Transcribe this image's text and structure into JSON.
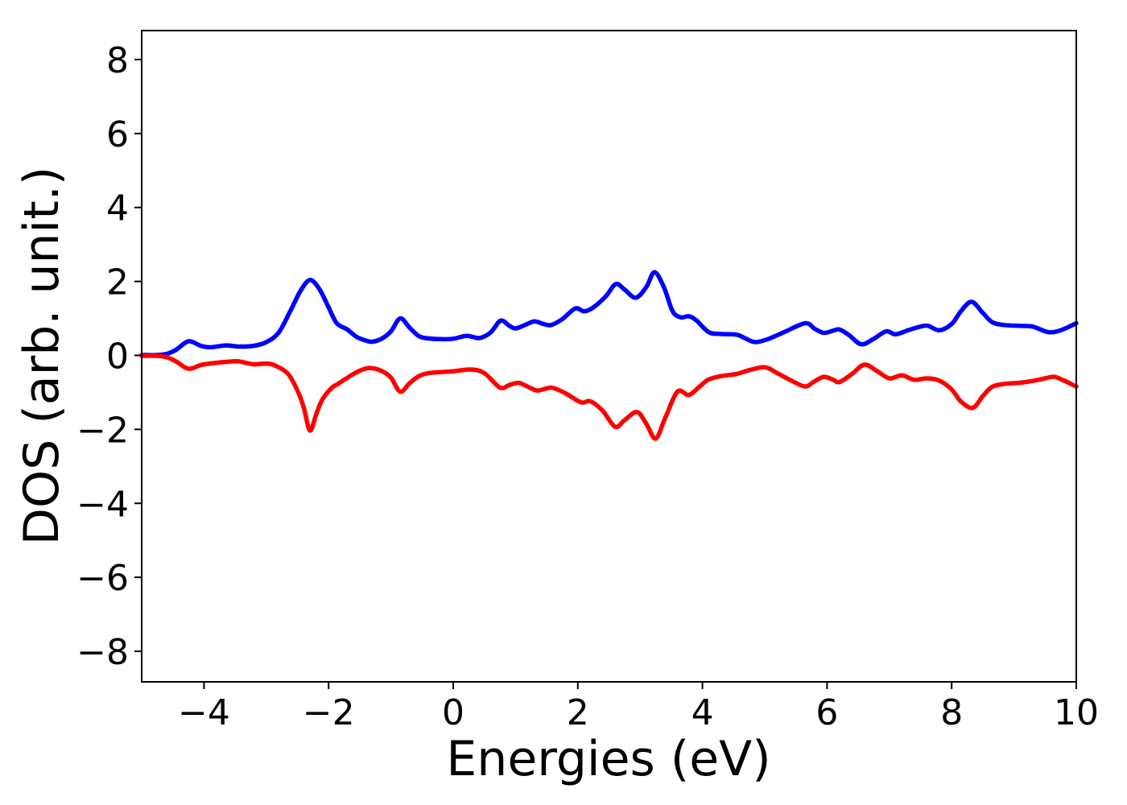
{
  "chart_data": {
    "type": "line",
    "title": "",
    "xlabel": "Energies (eV)",
    "ylabel": "DOS (arb. unit.)",
    "xlim": [
      -5,
      10
    ],
    "ylim": [
      -8.8,
      8.8
    ],
    "x_ticks": [
      -4,
      -2,
      0,
      2,
      4,
      6,
      8,
      10
    ],
    "y_ticks": [
      -8,
      -6,
      -4,
      -2,
      0,
      2,
      4,
      6,
      8
    ],
    "x_tick_labels": [
      "−4",
      "−2",
      "0",
      "2",
      "4",
      "6",
      "8",
      "10"
    ],
    "y_tick_labels": [
      "−8",
      "−6",
      "−4",
      "−2",
      "0",
      "2",
      "4",
      "6",
      "8"
    ],
    "grid": false,
    "legend": "none",
    "axis_color": "#000000",
    "background_color": "#ffffff",
    "series": [
      {
        "name": "blue-curve-spin-up-dos",
        "color": "#0000ff",
        "points": [
          [
            -5.0,
            0.01
          ],
          [
            -4.75,
            0.01
          ],
          [
            -4.6,
            0.04
          ],
          [
            -4.45,
            0.15
          ],
          [
            -4.25,
            0.38
          ],
          [
            -4.05,
            0.26
          ],
          [
            -3.9,
            0.22
          ],
          [
            -3.65,
            0.27
          ],
          [
            -3.45,
            0.24
          ],
          [
            -3.2,
            0.26
          ],
          [
            -3.0,
            0.36
          ],
          [
            -2.8,
            0.62
          ],
          [
            -2.6,
            1.25
          ],
          [
            -2.45,
            1.75
          ],
          [
            -2.3,
            2.04
          ],
          [
            -2.15,
            1.8
          ],
          [
            -2.0,
            1.3
          ],
          [
            -1.87,
            0.87
          ],
          [
            -1.7,
            0.7
          ],
          [
            -1.55,
            0.5
          ],
          [
            -1.4,
            0.4
          ],
          [
            -1.3,
            0.37
          ],
          [
            -1.15,
            0.45
          ],
          [
            -1.0,
            0.65
          ],
          [
            -0.85,
            1.0
          ],
          [
            -0.7,
            0.75
          ],
          [
            -0.55,
            0.52
          ],
          [
            -0.4,
            0.46
          ],
          [
            -0.2,
            0.44
          ],
          [
            0.0,
            0.45
          ],
          [
            0.22,
            0.53
          ],
          [
            0.42,
            0.47
          ],
          [
            0.6,
            0.62
          ],
          [
            0.76,
            0.94
          ],
          [
            0.9,
            0.8
          ],
          [
            1.0,
            0.73
          ],
          [
            1.15,
            0.82
          ],
          [
            1.3,
            0.92
          ],
          [
            1.45,
            0.85
          ],
          [
            1.57,
            0.82
          ],
          [
            1.75,
            0.98
          ],
          [
            1.96,
            1.27
          ],
          [
            2.1,
            1.19
          ],
          [
            2.25,
            1.3
          ],
          [
            2.45,
            1.6
          ],
          [
            2.61,
            1.93
          ],
          [
            2.75,
            1.78
          ],
          [
            2.93,
            1.56
          ],
          [
            3.1,
            1.85
          ],
          [
            3.23,
            2.25
          ],
          [
            3.38,
            1.85
          ],
          [
            3.52,
            1.2
          ],
          [
            3.65,
            1.03
          ],
          [
            3.78,
            1.06
          ],
          [
            3.9,
            0.95
          ],
          [
            4.1,
            0.63
          ],
          [
            4.3,
            0.58
          ],
          [
            4.55,
            0.56
          ],
          [
            4.7,
            0.45
          ],
          [
            4.85,
            0.36
          ],
          [
            5.05,
            0.44
          ],
          [
            5.3,
            0.62
          ],
          [
            5.65,
            0.87
          ],
          [
            5.8,
            0.72
          ],
          [
            5.95,
            0.61
          ],
          [
            6.1,
            0.67
          ],
          [
            6.2,
            0.7
          ],
          [
            6.35,
            0.55
          ],
          [
            6.55,
            0.3
          ],
          [
            6.75,
            0.45
          ],
          [
            6.95,
            0.65
          ],
          [
            7.1,
            0.57
          ],
          [
            7.3,
            0.68
          ],
          [
            7.5,
            0.78
          ],
          [
            7.62,
            0.8
          ],
          [
            7.8,
            0.68
          ],
          [
            8.0,
            0.85
          ],
          [
            8.15,
            1.2
          ],
          [
            8.32,
            1.45
          ],
          [
            8.5,
            1.15
          ],
          [
            8.65,
            0.9
          ],
          [
            8.85,
            0.82
          ],
          [
            9.1,
            0.8
          ],
          [
            9.3,
            0.78
          ],
          [
            9.55,
            0.63
          ],
          [
            9.75,
            0.68
          ],
          [
            10.0,
            0.87
          ]
        ]
      },
      {
        "name": "red-curve-spin-down-dos",
        "color": "#ff0000",
        "points": [
          [
            -5.0,
            -0.01
          ],
          [
            -4.75,
            -0.01
          ],
          [
            -4.6,
            -0.05
          ],
          [
            -4.45,
            -0.16
          ],
          [
            -4.25,
            -0.36
          ],
          [
            -4.05,
            -0.26
          ],
          [
            -3.85,
            -0.21
          ],
          [
            -3.6,
            -0.17
          ],
          [
            -3.45,
            -0.16
          ],
          [
            -3.2,
            -0.24
          ],
          [
            -3.0,
            -0.22
          ],
          [
            -2.85,
            -0.28
          ],
          [
            -2.65,
            -0.5
          ],
          [
            -2.5,
            -0.95
          ],
          [
            -2.4,
            -1.4
          ],
          [
            -2.3,
            -2.03
          ],
          [
            -2.2,
            -1.6
          ],
          [
            -2.1,
            -1.19
          ],
          [
            -1.95,
            -0.88
          ],
          [
            -1.85,
            -0.77
          ],
          [
            -1.6,
            -0.5
          ],
          [
            -1.45,
            -0.38
          ],
          [
            -1.33,
            -0.34
          ],
          [
            -1.15,
            -0.42
          ],
          [
            -1.0,
            -0.6
          ],
          [
            -0.85,
            -0.98
          ],
          [
            -0.7,
            -0.75
          ],
          [
            -0.55,
            -0.56
          ],
          [
            -0.4,
            -0.48
          ],
          [
            -0.2,
            -0.45
          ],
          [
            0.0,
            -0.43
          ],
          [
            0.28,
            -0.38
          ],
          [
            0.5,
            -0.48
          ],
          [
            0.75,
            -0.87
          ],
          [
            0.9,
            -0.8
          ],
          [
            1.05,
            -0.74
          ],
          [
            1.2,
            -0.85
          ],
          [
            1.35,
            -0.95
          ],
          [
            1.5,
            -0.89
          ],
          [
            1.6,
            -0.88
          ],
          [
            1.8,
            -1.02
          ],
          [
            2.05,
            -1.27
          ],
          [
            2.2,
            -1.24
          ],
          [
            2.4,
            -1.5
          ],
          [
            2.6,
            -1.93
          ],
          [
            2.75,
            -1.75
          ],
          [
            2.95,
            -1.53
          ],
          [
            3.1,
            -1.85
          ],
          [
            3.25,
            -2.25
          ],
          [
            3.4,
            -1.7
          ],
          [
            3.6,
            -0.98
          ],
          [
            3.78,
            -1.07
          ],
          [
            3.95,
            -0.85
          ],
          [
            4.1,
            -0.65
          ],
          [
            4.3,
            -0.56
          ],
          [
            4.55,
            -0.5
          ],
          [
            4.75,
            -0.4
          ],
          [
            5.0,
            -0.32
          ],
          [
            5.2,
            -0.48
          ],
          [
            5.45,
            -0.7
          ],
          [
            5.65,
            -0.84
          ],
          [
            5.8,
            -0.7
          ],
          [
            5.95,
            -0.58
          ],
          [
            6.1,
            -0.66
          ],
          [
            6.2,
            -0.72
          ],
          [
            6.4,
            -0.5
          ],
          [
            6.6,
            -0.25
          ],
          [
            6.8,
            -0.42
          ],
          [
            7.0,
            -0.62
          ],
          [
            7.2,
            -0.54
          ],
          [
            7.4,
            -0.66
          ],
          [
            7.6,
            -0.62
          ],
          [
            7.8,
            -0.68
          ],
          [
            8.0,
            -0.92
          ],
          [
            8.15,
            -1.25
          ],
          [
            8.34,
            -1.42
          ],
          [
            8.5,
            -1.1
          ],
          [
            8.65,
            -0.85
          ],
          [
            8.85,
            -0.77
          ],
          [
            9.1,
            -0.74
          ],
          [
            9.3,
            -0.69
          ],
          [
            9.5,
            -0.62
          ],
          [
            9.65,
            -0.58
          ],
          [
            9.8,
            -0.68
          ],
          [
            10.0,
            -0.84
          ]
        ]
      }
    ]
  }
}
